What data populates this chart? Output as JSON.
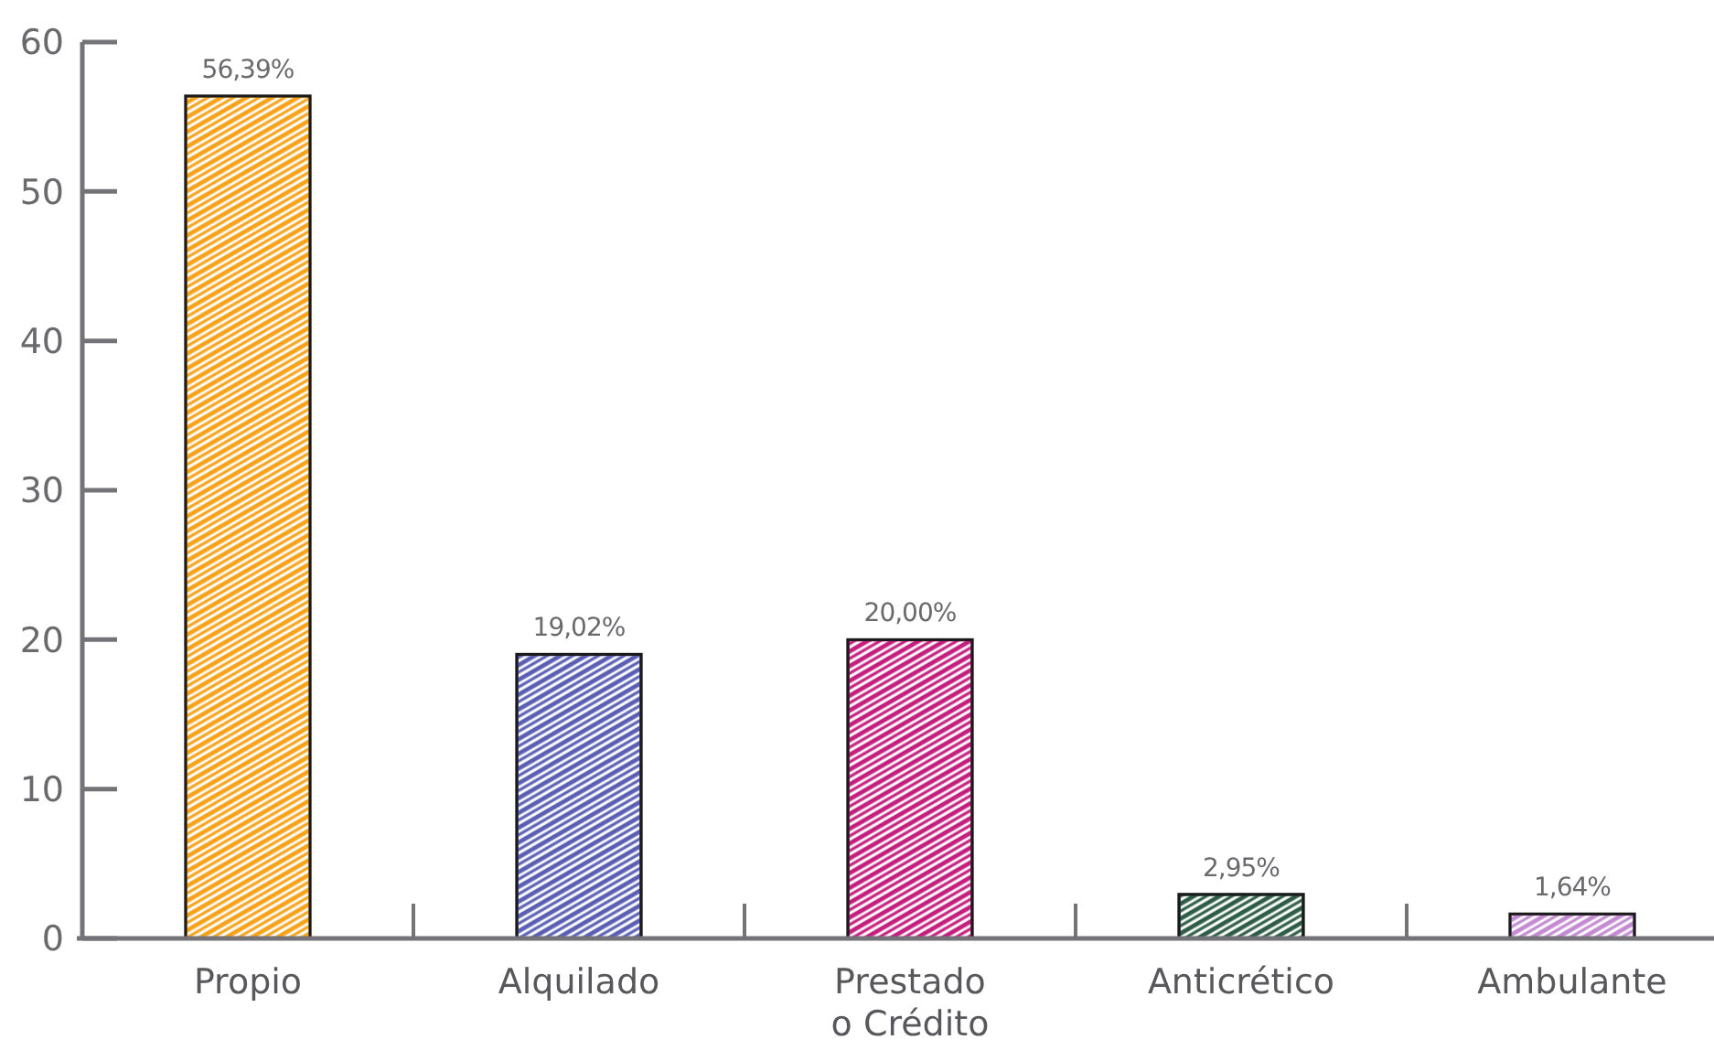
{
  "chart_data": {
    "type": "bar",
    "categories": [
      "Propio",
      "Alquilado",
      "Prestado o Crédito",
      "Anticrético",
      "Ambulante"
    ],
    "values": [
      56.39,
      19.02,
      20.0,
      2.95,
      1.64
    ],
    "colors": [
      "#f7a21b",
      "#5a5fb4",
      "#c41f7f",
      "#2e5d47",
      "#c48ad2"
    ],
    "value_labels": [
      "56,39%",
      "19,02%",
      "20,00%",
      "2,95%",
      "1,64%"
    ],
    "ylim": [
      0,
      60
    ],
    "yticks": [
      0,
      10,
      20,
      30,
      40,
      50,
      60
    ],
    "grid": false
  }
}
